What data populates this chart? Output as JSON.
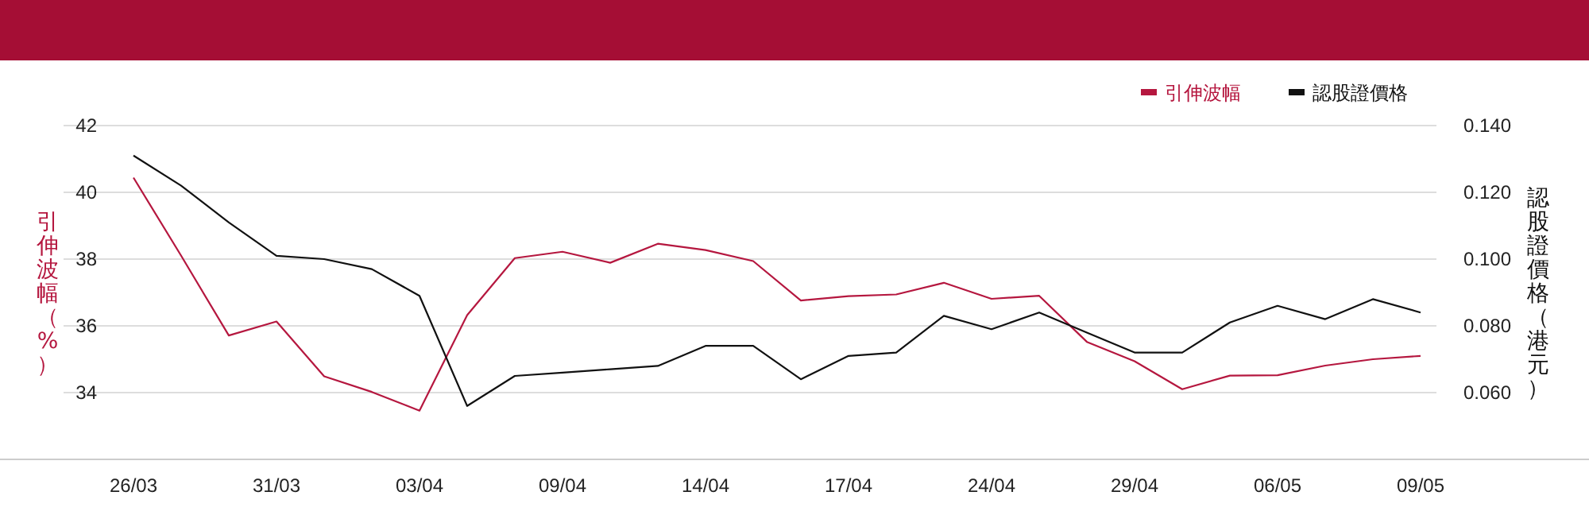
{
  "chart_data": {
    "type": "line",
    "categories": [
      "26/03",
      null,
      null,
      "31/03",
      null,
      null,
      "03/04",
      null,
      null,
      "09/04",
      null,
      null,
      "14/04",
      null,
      null,
      "17/04",
      null,
      null,
      "24/04",
      null,
      null,
      "29/04",
      null,
      null,
      "06/05",
      null,
      null,
      "09/05"
    ],
    "series": [
      {
        "name": "引伸波幅",
        "color": "#b5173f",
        "values": [
          40.44,
          38.1,
          35.71,
          36.13,
          34.49,
          34.02,
          33.46,
          36.32,
          38.03,
          38.22,
          37.89,
          38.46,
          38.27,
          37.94,
          36.76,
          36.89,
          36.94,
          37.29,
          36.81,
          36.9,
          35.52,
          34.94,
          34.1,
          34.51,
          34.52,
          34.81,
          35.0,
          35.1
        ]
      },
      {
        "name": "認股證價格",
        "color": "#111111",
        "axis": "y2",
        "values": [
          0.131,
          0.122,
          0.111,
          0.101,
          0.1,
          0.097,
          0.089,
          0.056,
          0.065,
          0.066,
          0.067,
          0.068,
          0.074,
          0.074,
          0.064,
          0.071,
          0.072,
          0.083,
          0.079,
          0.084,
          0.078,
          0.072,
          0.072,
          0.081,
          0.086,
          0.082,
          0.088,
          0.084
        ]
      }
    ],
    "ylabel": "引伸波幅（%）",
    "y2label": "認股證價格（港元）",
    "ylim": [
      32,
      42
    ],
    "yticks": [
      34,
      36,
      38,
      40,
      42
    ],
    "y2lim": [
      0.04,
      0.14
    ],
    "y2ticks": [
      {
        "value": 0.06,
        "label": "0.060"
      },
      {
        "value": 0.08,
        "label": "0.080"
      },
      {
        "value": 0.1,
        "label": "0.100"
      },
      {
        "value": 0.12,
        "label": "0.120"
      },
      {
        "value": 0.14,
        "label": "0.140"
      }
    ],
    "grid": "y",
    "legend": "top right",
    "marker": "none",
    "line_style": "solid"
  }
}
